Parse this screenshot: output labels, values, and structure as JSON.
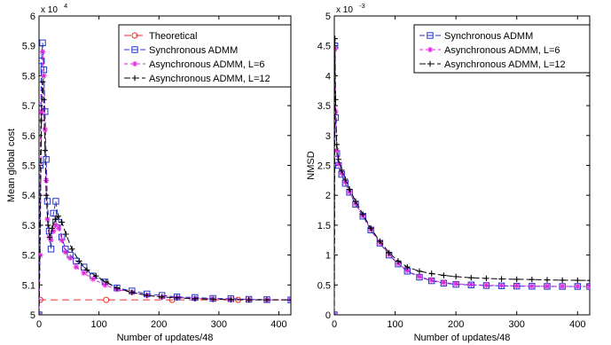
{
  "chart_data": [
    {
      "type": "line",
      "xlabel": "Number of updates/48",
      "ylabel": "Mean global cost",
      "exponent_base": "x 10",
      "exponent_power": "4",
      "xlim": [
        0,
        420
      ],
      "ylim": [
        5.0,
        6.0
      ],
      "xticks": [
        0,
        100,
        200,
        300,
        400
      ],
      "yticks": [
        5,
        5.1,
        5.2,
        5.3,
        5.4,
        5.5,
        5.6,
        5.7,
        5.8,
        5.9,
        6
      ],
      "grid": false,
      "legend_position": "top-right",
      "series": [
        {
          "name": "Theoretical",
          "color": "#e8312a",
          "marker": "circle",
          "dash": "8,5",
          "x": [
            0,
            2,
            420
          ],
          "y": [
            5.05,
            5.05,
            5.05
          ],
          "marker_x": [
            2,
            112,
            222,
            332
          ]
        },
        {
          "name": "Synchronous ADMM",
          "color": "#2233cc",
          "marker": "square",
          "dash": "6,3",
          "x": [
            0,
            2,
            4,
            6,
            8,
            10,
            12,
            14,
            17,
            20,
            24,
            28,
            33,
            38,
            44,
            52,
            62,
            75,
            90,
            110,
            130,
            155,
            180,
            205,
            230,
            260,
            290,
            320,
            350,
            380,
            420
          ],
          "y": [
            5.0,
            5.5,
            5.85,
            5.91,
            5.82,
            5.68,
            5.52,
            5.38,
            5.28,
            5.22,
            5.34,
            5.38,
            5.31,
            5.26,
            5.22,
            5.2,
            5.18,
            5.16,
            5.13,
            5.11,
            5.09,
            5.08,
            5.07,
            5.065,
            5.06,
            5.058,
            5.055,
            5.054,
            5.052,
            5.051,
            5.05
          ]
        },
        {
          "name": "Asynchronous ADMM, L=6",
          "color": "#dd22dd",
          "marker": "asterisk",
          "dash": "4,3",
          "x": [
            0,
            2,
            4,
            6,
            8,
            10,
            12,
            14,
            17,
            20,
            24,
            28,
            33,
            38,
            44,
            52,
            62,
            75,
            90,
            110,
            130,
            155,
            180,
            205,
            230,
            260,
            290,
            320,
            350,
            380,
            420
          ],
          "y": [
            5.0,
            5.2,
            5.68,
            5.88,
            5.8,
            5.62,
            5.45,
            5.32,
            5.26,
            5.25,
            5.28,
            5.3,
            5.29,
            5.25,
            5.21,
            5.19,
            5.16,
            5.14,
            5.12,
            5.1,
            5.085,
            5.075,
            5.065,
            5.06,
            5.058,
            5.055,
            5.053,
            5.052,
            5.051,
            5.05,
            5.05
          ]
        },
        {
          "name": "Asynchronous ADMM, L=12",
          "color": "#000000",
          "marker": "plus",
          "dash": "7,3",
          "x": [
            0,
            2,
            4,
            6,
            8,
            10,
            12,
            15,
            18,
            22,
            27,
            32,
            38,
            45,
            55,
            67,
            80,
            95,
            112,
            130,
            155,
            180,
            205,
            230,
            260,
            290,
            320,
            350,
            380,
            420
          ],
          "y": [
            5.0,
            5.3,
            5.65,
            5.78,
            5.72,
            5.55,
            5.4,
            5.3,
            5.26,
            5.29,
            5.32,
            5.33,
            5.31,
            5.27,
            5.22,
            5.18,
            5.15,
            5.13,
            5.11,
            5.09,
            5.075,
            5.065,
            5.06,
            5.057,
            5.054,
            5.052,
            5.051,
            5.05,
            5.05,
            5.05
          ]
        }
      ]
    },
    {
      "type": "line",
      "xlabel": "Number of updates/48",
      "ylabel": "NMSD",
      "exponent_base": "x 10",
      "exponent_power": "-3",
      "xlim": [
        0,
        420
      ],
      "ylim": [
        0,
        5
      ],
      "xticks": [
        0,
        100,
        200,
        300,
        400
      ],
      "yticks": [
        0,
        0.5,
        1,
        1.5,
        2,
        2.5,
        3,
        3.5,
        4,
        4.5,
        5
      ],
      "grid": false,
      "legend_position": "top-right",
      "series": [
        {
          "name": "Synchronous ADMM",
          "color": "#2233cc",
          "marker": "square",
          "dash": "6,3",
          "x": [
            0,
            1,
            2,
            4,
            7,
            12,
            18,
            25,
            35,
            47,
            60,
            75,
            90,
            105,
            120,
            140,
            160,
            180,
            200,
            225,
            250,
            275,
            300,
            325,
            350,
            375,
            400,
            420
          ],
          "y": [
            0,
            4.5,
            3.3,
            2.7,
            2.5,
            2.35,
            2.2,
            2.05,
            1.85,
            1.65,
            1.42,
            1.2,
            1.0,
            0.85,
            0.73,
            0.63,
            0.57,
            0.53,
            0.51,
            0.5,
            0.49,
            0.485,
            0.48,
            0.478,
            0.476,
            0.475,
            0.475,
            0.475
          ]
        },
        {
          "name": "Asynchronous ADMM, L=6",
          "color": "#dd22dd",
          "marker": "asterisk",
          "dash": "4,3",
          "x": [
            0,
            1,
            2,
            4,
            7,
            12,
            18,
            25,
            35,
            47,
            60,
            75,
            90,
            105,
            120,
            140,
            160,
            180,
            200,
            225,
            250,
            275,
            300,
            325,
            350,
            375,
            400,
            420
          ],
          "y": [
            0,
            4.45,
            3.4,
            2.75,
            2.52,
            2.37,
            2.22,
            2.06,
            1.86,
            1.66,
            1.43,
            1.21,
            1.01,
            0.86,
            0.74,
            0.64,
            0.58,
            0.54,
            0.52,
            0.505,
            0.495,
            0.49,
            0.485,
            0.48,
            0.478,
            0.476,
            0.475,
            0.475
          ]
        },
        {
          "name": "Asynchronous ADMM, L=12",
          "color": "#000000",
          "marker": "plus",
          "dash": "7,3",
          "x": [
            0,
            1,
            2,
            4,
            7,
            12,
            18,
            25,
            35,
            47,
            60,
            75,
            90,
            105,
            120,
            140,
            160,
            180,
            200,
            225,
            250,
            275,
            300,
            325,
            350,
            375,
            400,
            420
          ],
          "y": [
            0,
            4.62,
            3.6,
            2.85,
            2.6,
            2.42,
            2.27,
            2.1,
            1.9,
            1.68,
            1.45,
            1.23,
            1.04,
            0.9,
            0.8,
            0.73,
            0.69,
            0.66,
            0.64,
            0.62,
            0.61,
            0.6,
            0.595,
            0.59,
            0.585,
            0.58,
            0.578,
            0.575
          ]
        }
      ]
    }
  ]
}
